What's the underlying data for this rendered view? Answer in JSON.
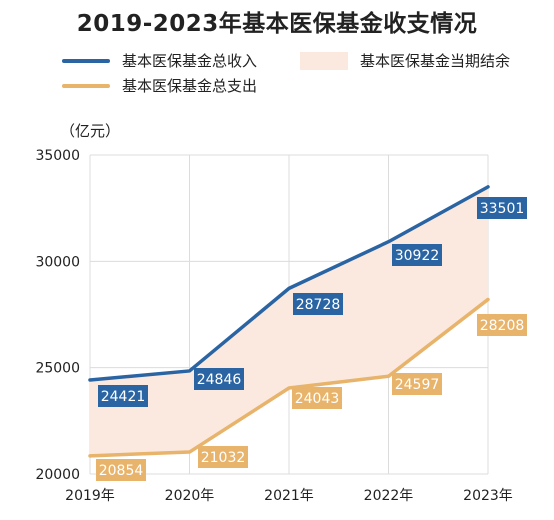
{
  "title": "2019-2023年基本医保基金收支情况",
  "unit_label": "（亿元）",
  "legend": [
    {
      "label": "基本医保基金总收入",
      "kind": "line",
      "color": "#2a64a3"
    },
    {
      "label": "基本医保基金当期结余",
      "kind": "area",
      "color": "#fbe9df"
    },
    {
      "label": "基本医保基金总支出",
      "kind": "line",
      "color": "#e8b36a"
    }
  ],
  "chart_data": {
    "type": "line",
    "title": "2019-2023年基本医保基金收支情况",
    "ylabel": "（亿元）",
    "categories": [
      "2019年",
      "2020年",
      "2021年",
      "2022年",
      "2023年"
    ],
    "ylim": [
      20000,
      35000
    ],
    "yticks": [
      20000,
      25000,
      30000,
      35000
    ],
    "grid": true,
    "legend_position": "top",
    "series": [
      {
        "name": "基本医保基金总收入",
        "color": "#2a64a3",
        "values": [
          24421,
          24846,
          28728,
          30922,
          33501
        ]
      },
      {
        "name": "基本医保基金总支出",
        "color": "#e8b36a",
        "values": [
          20854,
          21032,
          24043,
          24597,
          28208
        ]
      }
    ],
    "fill_between": {
      "name": "基本医保基金当期结余",
      "color": "#fbe9df"
    }
  }
}
